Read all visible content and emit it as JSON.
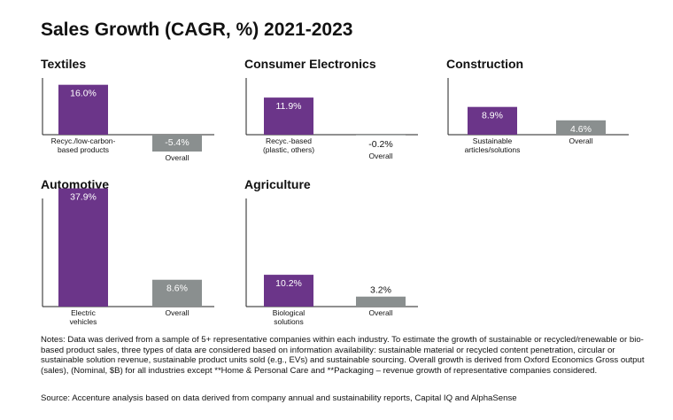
{
  "title": "Sales Growth (CAGR, %) 2021-2023",
  "colors": {
    "bar_primary": "#6b3589",
    "bar_overall": "#8a8f8f",
    "label_on_bar": "#ffffff"
  },
  "notes": "Notes: Data was derived from a sample of 5+ representative companies within each industry. To estimate the growth of sustainable or recycled/renewable or bio-based product sales, three types of data are considered based on information availability: sustainable material or recycled content penetration, circular or sustainable solution revenue, sustainable product units sold (e.g., EVs) and sustainable sourcing. Overall growth is derived from Oxford Economics Gross output (sales), (Nominal, $B) for all industries except **Home & Personal Care and **Packaging – revenue growth of representative companies considered.",
  "source": "Source: Accenture analysis based on data derived from company annual and sustainability reports, Capital IQ and AlphaSense",
  "chart_data": [
    {
      "type": "bar",
      "title": "Textiles",
      "categories": [
        [
          "Recyc./low-carbon-",
          "based products"
        ],
        [
          "Overall"
        ]
      ],
      "values": [
        16.0,
        -5.4
      ],
      "value_labels": [
        "16.0%",
        "-5.4%"
      ]
    },
    {
      "type": "bar",
      "title": "Consumer Electronics",
      "categories": [
        [
          "Recyc.-based",
          "(plastic, others)"
        ],
        [
          "Overall"
        ]
      ],
      "values": [
        11.9,
        -0.2
      ],
      "value_labels": [
        "11.9%",
        "-0.2%"
      ]
    },
    {
      "type": "bar",
      "title": "Construction",
      "categories": [
        [
          "Sustainable",
          "articles/solutions"
        ],
        [
          "Overall"
        ]
      ],
      "values": [
        8.9,
        4.6
      ],
      "value_labels": [
        "8.9%",
        "4.6%"
      ]
    },
    {
      "type": "bar",
      "title": "Automotive",
      "categories": [
        [
          "Electric",
          "vehicles"
        ],
        [
          "Overall"
        ]
      ],
      "values": [
        37.9,
        8.6
      ],
      "value_labels": [
        "37.9%",
        "8.6%"
      ]
    },
    {
      "type": "bar",
      "title": "Agriculture",
      "categories": [
        [
          "Biological",
          "solutions"
        ],
        [
          "Overall"
        ]
      ],
      "values": [
        10.2,
        3.2
      ],
      "value_labels": [
        "10.2%",
        "3.2%"
      ]
    }
  ]
}
